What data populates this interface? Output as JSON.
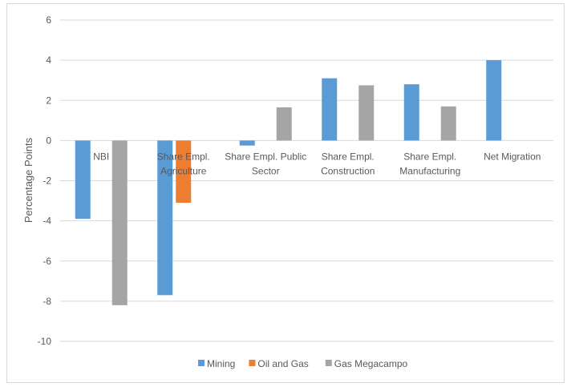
{
  "chart_data": {
    "type": "bar",
    "title": "",
    "xlabel": "",
    "ylabel": "Percentage Points",
    "ylim": [
      -10,
      6
    ],
    "yticks": [
      6,
      4,
      2,
      0,
      -2,
      -4,
      -6,
      -8,
      -10
    ],
    "grid": true,
    "legend": "bottom",
    "categories": [
      [
        "NBI"
      ],
      [
        "Share Empl.",
        "Agriculture"
      ],
      [
        "Share Empl. Public",
        "Sector"
      ],
      [
        "Share Empl.",
        "Construction"
      ],
      [
        "Share Empl.",
        "Manufacturing"
      ],
      [
        "Net Migration"
      ]
    ],
    "series": [
      {
        "name": "Mining",
        "color": "#5b9bd5",
        "values": [
          -3.9,
          -7.7,
          -0.25,
          3.1,
          2.8,
          4.0
        ]
      },
      {
        "name": "Oil and Gas",
        "color": "#ed7d31",
        "values": [
          null,
          -3.1,
          null,
          null,
          null,
          null
        ]
      },
      {
        "name": "Gas Megacampo",
        "color": "#a5a5a5",
        "values": [
          -8.2,
          null,
          1.65,
          2.75,
          1.7,
          null
        ]
      }
    ]
  }
}
